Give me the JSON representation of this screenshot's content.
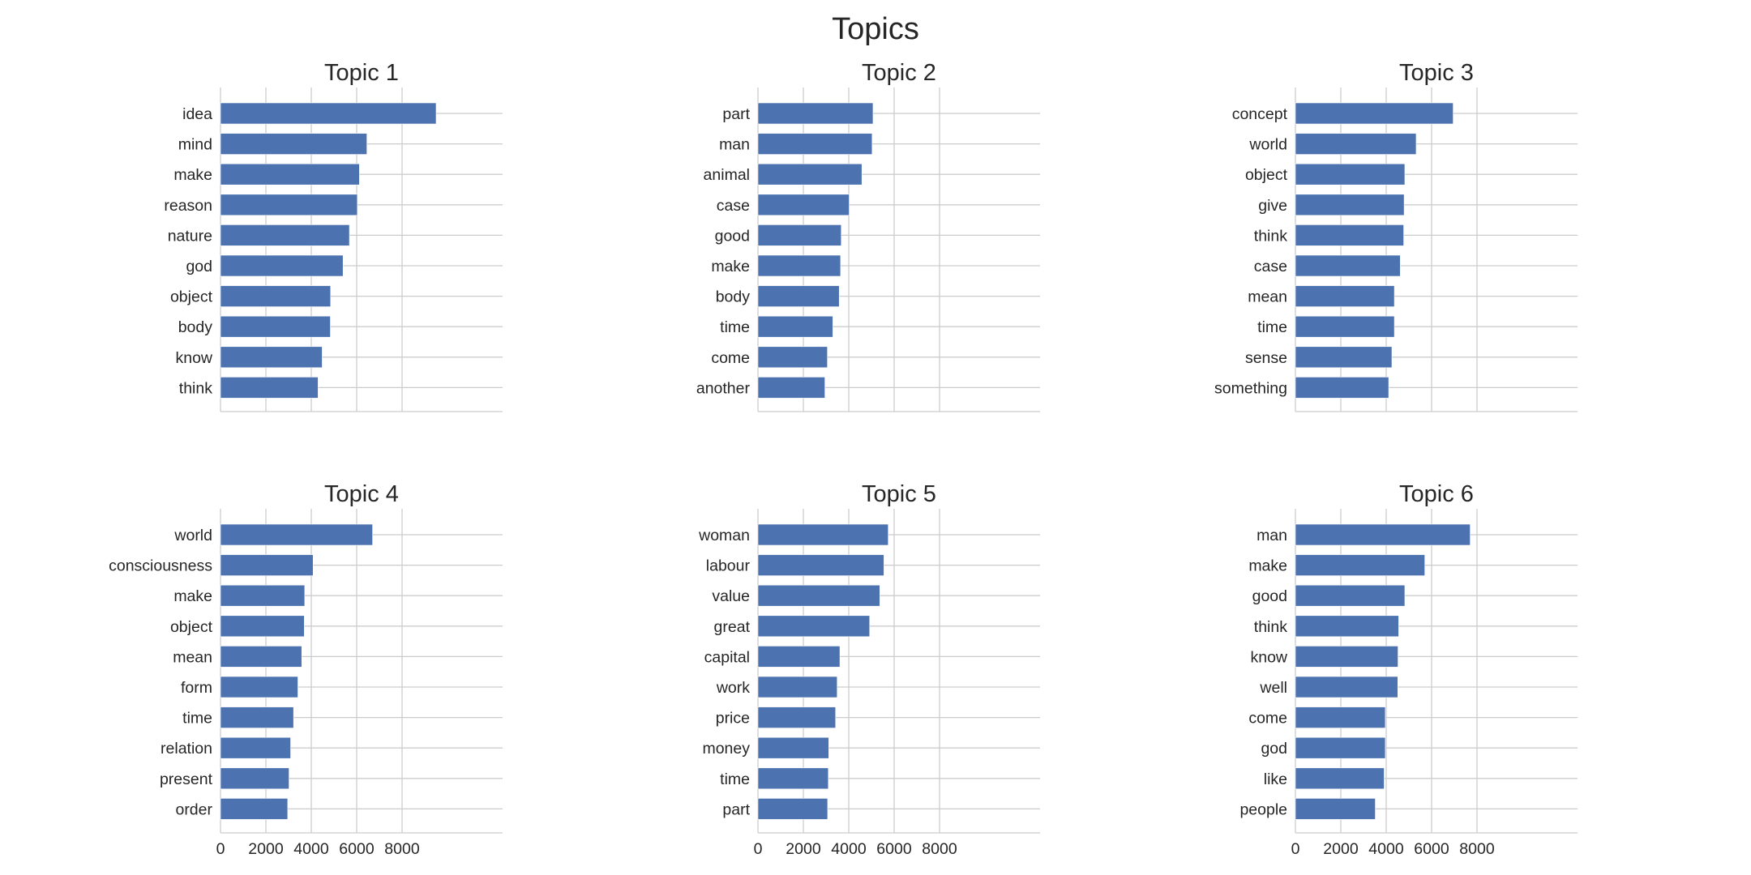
{
  "chart_data": {
    "title": "Topics",
    "type": "bar",
    "orientation": "horizontal",
    "xlim": [
      0,
      10000
    ],
    "xticks": [
      0,
      2000,
      4000,
      6000,
      8000
    ],
    "grid": true,
    "color": "#4c72b0",
    "panels": [
      {
        "title": "Topic 1",
        "categories": [
          "idea",
          "mind",
          "make",
          "reason",
          "nature",
          "god",
          "object",
          "body",
          "know",
          "think"
        ],
        "values": [
          9500,
          6450,
          6120,
          6030,
          5680,
          5400,
          4850,
          4840,
          4480,
          4300
        ]
      },
      {
        "title": "Topic 2",
        "categories": [
          "part",
          "man",
          "animal",
          "case",
          "good",
          "make",
          "body",
          "time",
          "come",
          "another"
        ],
        "values": [
          5070,
          5030,
          4580,
          4020,
          3670,
          3640,
          3580,
          3300,
          3060,
          2950
        ]
      },
      {
        "title": "Topic 3",
        "categories": [
          "concept",
          "world",
          "object",
          "give",
          "think",
          "case",
          "mean",
          "time",
          "sense",
          "something"
        ],
        "values": [
          6950,
          5320,
          4820,
          4790,
          4770,
          4620,
          4360,
          4360,
          4250,
          4110
        ]
      },
      {
        "title": "Topic 4",
        "categories": [
          "world",
          "consciousness",
          "make",
          "object",
          "mean",
          "form",
          "time",
          "relation",
          "present",
          "order"
        ],
        "values": [
          6700,
          4080,
          3710,
          3690,
          3580,
          3410,
          3220,
          3090,
          3020,
          2960
        ]
      },
      {
        "title": "Topic 5",
        "categories": [
          "woman",
          "labour",
          "value",
          "great",
          "capital",
          "work",
          "price",
          "money",
          "time",
          "part"
        ],
        "values": [
          5740,
          5550,
          5370,
          4920,
          3610,
          3490,
          3420,
          3120,
          3100,
          3070
        ]
      },
      {
        "title": "Topic 6",
        "categories": [
          "man",
          "make",
          "good",
          "think",
          "know",
          "well",
          "come",
          "god",
          "like",
          "people"
        ],
        "values": [
          7700,
          5700,
          4820,
          4550,
          4520,
          4510,
          3960,
          3960,
          3910,
          3520
        ]
      }
    ]
  }
}
